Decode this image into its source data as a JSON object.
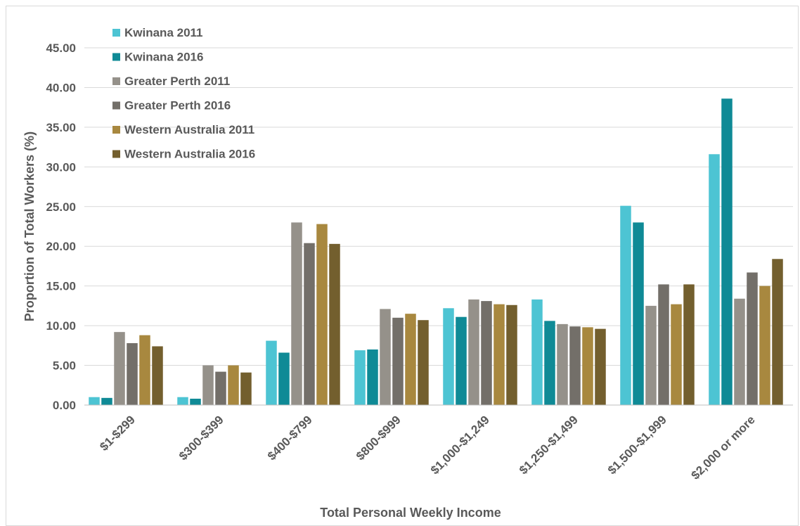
{
  "chart_data": {
    "type": "bar",
    "title": "",
    "xlabel": "Total Personal Weekly Income",
    "ylabel": "Proportion of Total Workers (%)",
    "ylim": [
      0,
      45
    ],
    "ytick_step": 5,
    "ytick_decimals": 2,
    "grid": true,
    "legend_position": "top-left",
    "categories": [
      "$1-$299",
      "$300-$399",
      "$400-$799",
      "$800-$999",
      "$1,000-$1,249",
      "$1,250-$1,499",
      "$1,500-$1,999",
      "$2,000 or more"
    ],
    "series": [
      {
        "name": "Kwinana 2011",
        "color": "#4dc4d3",
        "values": [
          1.0,
          1.0,
          8.1,
          6.9,
          12.2,
          13.3,
          25.1,
          31.6
        ]
      },
      {
        "name": "Kwinana 2016",
        "color": "#0f8a96",
        "values": [
          0.9,
          0.8,
          6.6,
          7.0,
          11.1,
          10.6,
          23.0,
          38.6
        ]
      },
      {
        "name": "Greater Perth 2011",
        "color": "#95918a",
        "values": [
          9.2,
          5.0,
          23.0,
          12.1,
          13.3,
          10.2,
          12.5,
          13.4
        ]
      },
      {
        "name": "Greater Perth 2016",
        "color": "#736f69",
        "values": [
          7.8,
          4.2,
          20.4,
          11.0,
          13.1,
          9.9,
          15.2,
          16.7
        ]
      },
      {
        "name": "Western Australia 2011",
        "color": "#a8883f",
        "values": [
          8.8,
          5.0,
          22.8,
          11.5,
          12.7,
          9.8,
          12.7,
          15.0
        ]
      },
      {
        "name": "Western Australia 2016",
        "color": "#735f2e",
        "values": [
          7.4,
          4.1,
          20.3,
          10.7,
          12.6,
          9.6,
          15.2,
          18.4
        ]
      }
    ]
  }
}
